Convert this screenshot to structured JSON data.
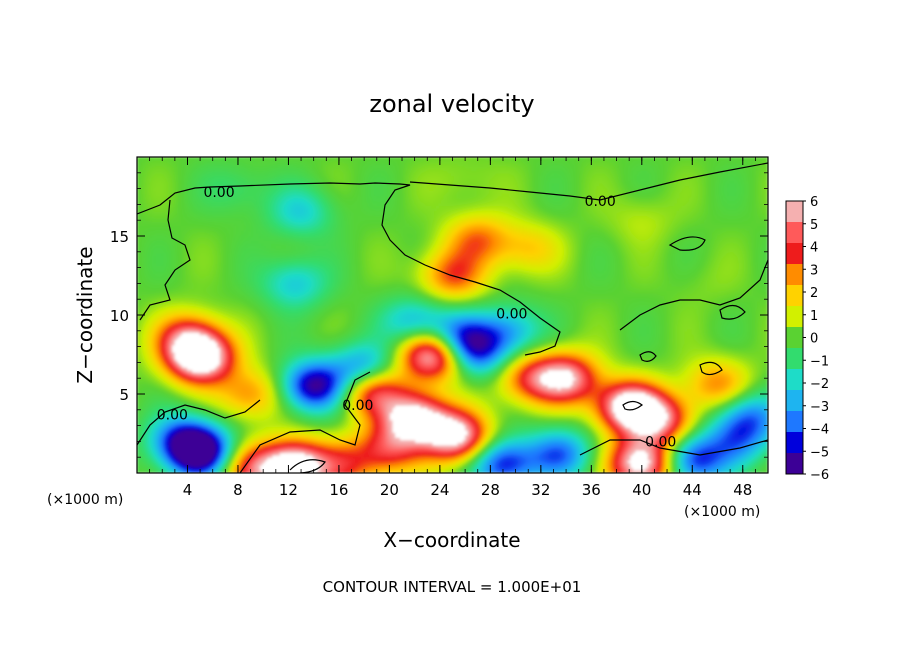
{
  "chart_data": {
    "type": "heatmap",
    "title": "zonal velocity",
    "xlabel": "X−coordinate",
    "ylabel": "Z−coordinate",
    "x_unit_label": "(×1000 m)",
    "footer": "CONTOUR INTERVAL = 1.000E+01",
    "xlim": [
      0,
      50
    ],
    "ylim": [
      0,
      20
    ],
    "x_ticks": [
      4,
      8,
      12,
      16,
      20,
      24,
      28,
      32,
      36,
      40,
      44,
      48
    ],
    "y_ticks": [
      5,
      10,
      15
    ],
    "contour_labels": [
      {
        "text": "0.00",
        "x": 6.5,
        "y": 17.8
      },
      {
        "text": "0.00",
        "x": 36.7,
        "y": 17.2
      },
      {
        "text": "0.00",
        "x": 29.7,
        "y": 10.1
      },
      {
        "text": "0.00",
        "x": 17.5,
        "y": 4.3
      },
      {
        "text": "0.00",
        "x": 2.8,
        "y": 3.7
      },
      {
        "text": "0.00",
        "x": 41.5,
        "y": 2.0
      }
    ],
    "colorbar": {
      "levels": [
        6,
        5,
        4,
        3,
        2,
        1,
        0,
        -1,
        -2,
        -3,
        -4,
        -5,
        -6
      ],
      "colors": [
        "#f5b0b0",
        "#ff5a5a",
        "#ee1c1c",
        "#ff8c00",
        "#ffd200",
        "#d2f000",
        "#5ad232",
        "#32dc6e",
        "#1edcc8",
        "#1eb4f0",
        "#1e78ff",
        "#0000dc",
        "#3c0096"
      ]
    },
    "features": [
      {
        "x": 5.0,
        "y": 7.3,
        "v": 8
      },
      {
        "x": 4.0,
        "y": 8.6,
        "v": 4
      },
      {
        "x": 9.0,
        "y": 5.0,
        "v": 3
      },
      {
        "x": 5.0,
        "y": 1.3,
        "v": -7
      },
      {
        "x": 3.5,
        "y": 2.2,
        "v": -3.5
      },
      {
        "x": 12.5,
        "y": 0.4,
        "v": 8
      },
      {
        "x": 9.0,
        "y": 0.3,
        "v": 4
      },
      {
        "x": 16.5,
        "y": 0.5,
        "v": 3
      },
      {
        "x": 12.5,
        "y": 12.0,
        "v": -2.5
      },
      {
        "x": 13.0,
        "y": 16.5,
        "v": -2.2
      },
      {
        "x": 14.0,
        "y": 5.5,
        "v": -6
      },
      {
        "x": 18.0,
        "y": 6.5,
        "v": -4.5
      },
      {
        "x": 18.6,
        "y": 5.3,
        "v": 5.5
      },
      {
        "x": 22.0,
        "y": 3.5,
        "v": 7
      },
      {
        "x": 25.3,
        "y": 2.3,
        "v": 7
      },
      {
        "x": 20.0,
        "y": 1.5,
        "v": 4
      },
      {
        "x": 23.5,
        "y": 7.5,
        "v": 7.5
      },
      {
        "x": 25.5,
        "y": 8.5,
        "v": -4.5
      },
      {
        "x": 27.0,
        "y": 7.5,
        "v": -3.5
      },
      {
        "x": 29.5,
        "y": 9.0,
        "v": -3
      },
      {
        "x": 22.0,
        "y": 9.5,
        "v": -3
      },
      {
        "x": 25.0,
        "y": 12.5,
        "v": 3.5
      },
      {
        "x": 27.0,
        "y": 14.8,
        "v": 3
      },
      {
        "x": 31.0,
        "y": 14.2,
        "v": 2
      },
      {
        "x": 34.0,
        "y": 6.0,
        "v": 6
      },
      {
        "x": 31.0,
        "y": 6.0,
        "v": 3.5
      },
      {
        "x": 33.5,
        "y": 1.2,
        "v": -4
      },
      {
        "x": 29.0,
        "y": 0.6,
        "v": -5
      },
      {
        "x": 39.0,
        "y": 4.2,
        "v": 7.5
      },
      {
        "x": 41.5,
        "y": 3.3,
        "v": 5
      },
      {
        "x": 40.0,
        "y": 0.6,
        "v": 7.5
      },
      {
        "x": 44.0,
        "y": 0.8,
        "v": -5
      },
      {
        "x": 46.0,
        "y": 5.6,
        "v": 3
      },
      {
        "x": 48.5,
        "y": 3.6,
        "v": -3.5
      },
      {
        "x": 47.5,
        "y": 2.0,
        "v": -3
      },
      {
        "x": 26.0,
        "y": 18.5,
        "v": 0.6
      },
      {
        "x": 40.0,
        "y": 16.0,
        "v": 0.8
      },
      {
        "x": 45.0,
        "y": 12.0,
        "v": 0.3
      },
      {
        "x": 8.0,
        "y": 18.0,
        "v": -1
      }
    ],
    "grid": false
  }
}
